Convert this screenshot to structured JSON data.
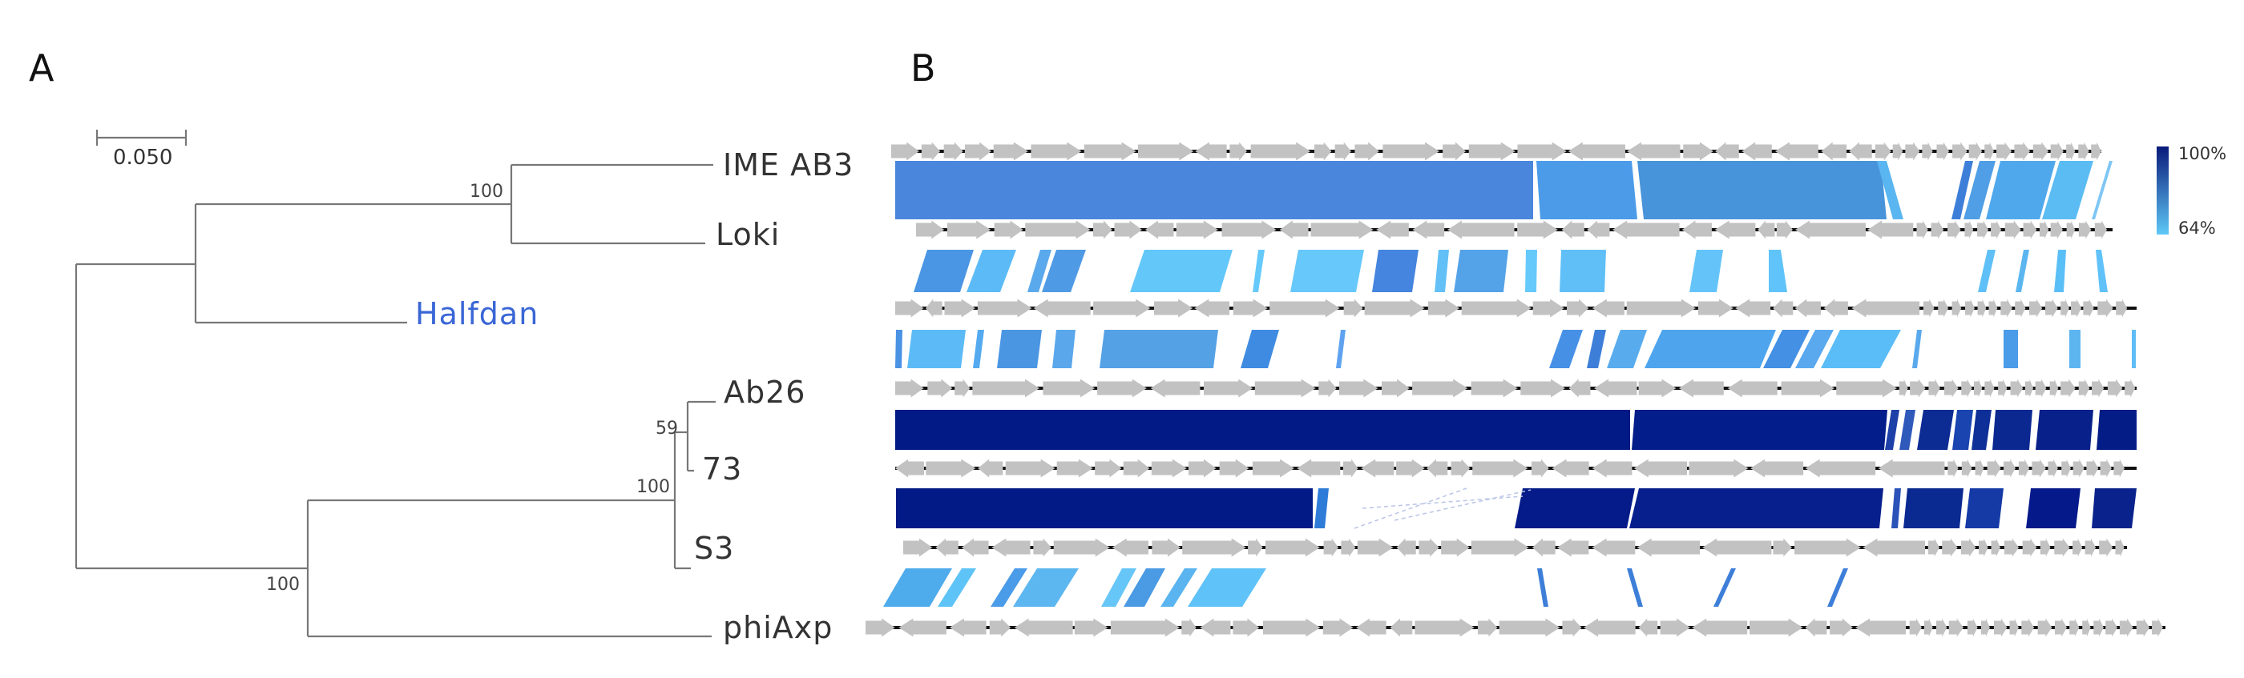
{
  "panels": {
    "a": "A",
    "b": "B"
  },
  "tree": {
    "scale_label": "0.050",
    "taxa": [
      "IME AB3",
      "Loki",
      "Halfdan",
      "Ab26",
      "73",
      "S3",
      "phiAxp"
    ],
    "highlight_taxon": "Halfdan",
    "highlight_color": "#3a66d6",
    "bootstrap": {
      "ime_loki": "100",
      "ab26_73": "59",
      "ab26_73_s3": "100",
      "root_lower": "100"
    }
  },
  "legend": {
    "max": "100%",
    "min": "64%",
    "max_color": "#0a1a7a",
    "min_color": "#5ec8f7"
  },
  "colors": {
    "gene_arrow": "#c2c2c2",
    "genome_line": "#111111"
  }
}
